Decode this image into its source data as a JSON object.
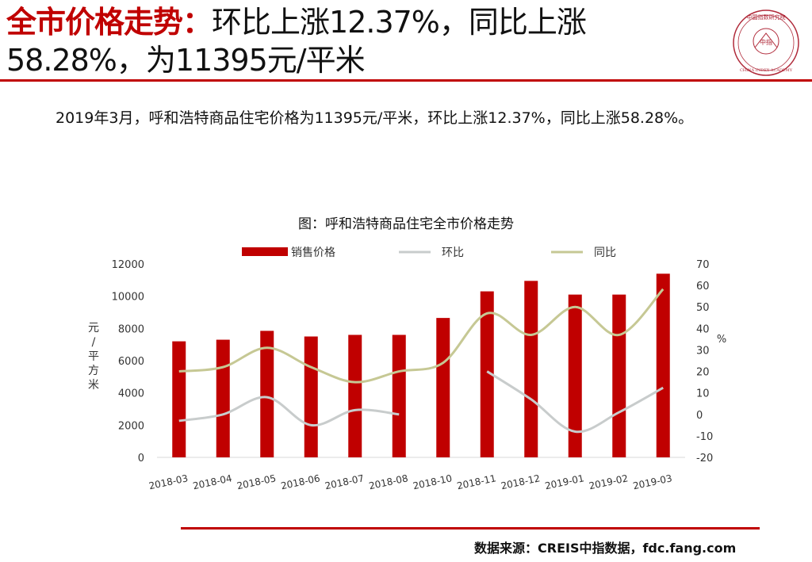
{
  "header": {
    "title_highlight": "全市价格走势：",
    "title_rest": "环比上涨12.37%，同比上涨58.28%，为11395元/平米",
    "seal_text": "中国指数研究院",
    "seal_center": "中指",
    "seal_en": "CHINA INDEX ACADEMY"
  },
  "body": {
    "paragraph": "2019年3月，呼和浩特商品住宅价格为11395元/平米，环比上涨12.37%，同比上涨58.28%。"
  },
  "footer": {
    "source": "数据来源：CREIS中指数据，fdc.fang.com"
  },
  "chart_data": {
    "type": "bar",
    "title": "图：呼和浩特商品住宅全市价格走势",
    "categories": [
      "2018-03",
      "2018-04",
      "2018-05",
      "2018-06",
      "2018-07",
      "2018-08",
      "2018-10",
      "2018-11",
      "2018-12",
      "2019-01",
      "2019-02",
      "2019-03"
    ],
    "ylabel": "元/平方米",
    "y2label": "%",
    "ylim": [
      0,
      12000
    ],
    "y_ticks": [
      "0",
      "2000",
      "4000",
      "6000",
      "8000",
      "10000",
      "12000"
    ],
    "y2lim": [
      -20,
      70
    ],
    "y2_ticks": [
      "-20",
      "-10",
      "0",
      "10",
      "20",
      "30",
      "40",
      "50",
      "60",
      "70"
    ],
    "legend_position": "top",
    "series": [
      {
        "name": "销售价格",
        "type": "bar",
        "axis": "left",
        "color": "#c00000",
        "values": [
          7200,
          7300,
          7850,
          7500,
          7600,
          7600,
          8650,
          10300,
          10950,
          10100,
          10100,
          11395
        ]
      },
      {
        "name": "环比",
        "type": "line",
        "axis": "right",
        "color": "#c8cccc",
        "values": [
          -3,
          0,
          8,
          -5,
          2,
          0,
          null,
          20,
          7,
          -8,
          1,
          12.37
        ]
      },
      {
        "name": "同比",
        "type": "line",
        "axis": "right",
        "color": "#c6c894",
        "values": [
          20,
          22,
          31,
          22,
          15,
          20,
          24,
          47,
          37,
          50,
          37,
          58.28
        ]
      }
    ]
  }
}
